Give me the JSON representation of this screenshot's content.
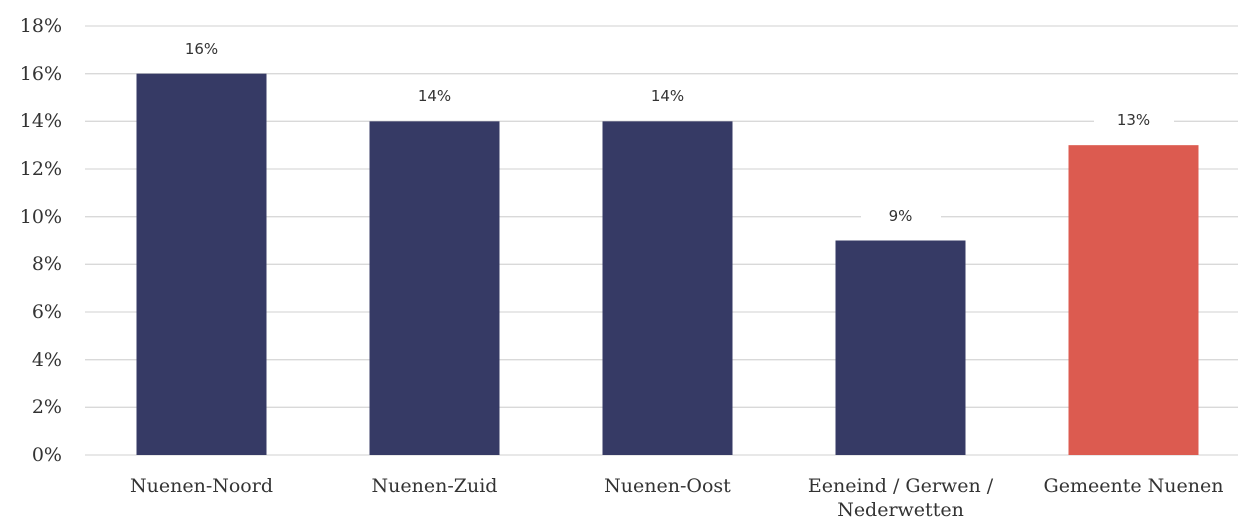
{
  "chart_data": {
    "type": "bar",
    "categories": [
      "Nuenen-Noord",
      "Nuenen-Zuid",
      "Nuenen-Oost",
      "Eeneind / Gerwen / Nederwetten",
      "Gemeente Nuenen"
    ],
    "values": [
      16,
      14,
      14,
      9,
      13
    ],
    "value_labels": [
      "16%",
      "14%",
      "14%",
      "9%",
      "13%"
    ],
    "colors": [
      "#363a65",
      "#363a65",
      "#363a65",
      "#363a65",
      "#dc5b50"
    ],
    "ylim": [
      0,
      18
    ],
    "yticks": [
      {
        "value": 0,
        "label": "0%"
      },
      {
        "value": 2,
        "label": "2%"
      },
      {
        "value": 4,
        "label": "4%"
      },
      {
        "value": 6,
        "label": "6%"
      },
      {
        "value": 8,
        "label": "8%"
      },
      {
        "value": 10,
        "label": "10%"
      },
      {
        "value": 12,
        "label": "12%"
      },
      {
        "value": 14,
        "label": "14%"
      },
      {
        "value": 16,
        "label": "16%"
      },
      {
        "value": 18,
        "label": "18%"
      }
    ],
    "grid": true
  }
}
